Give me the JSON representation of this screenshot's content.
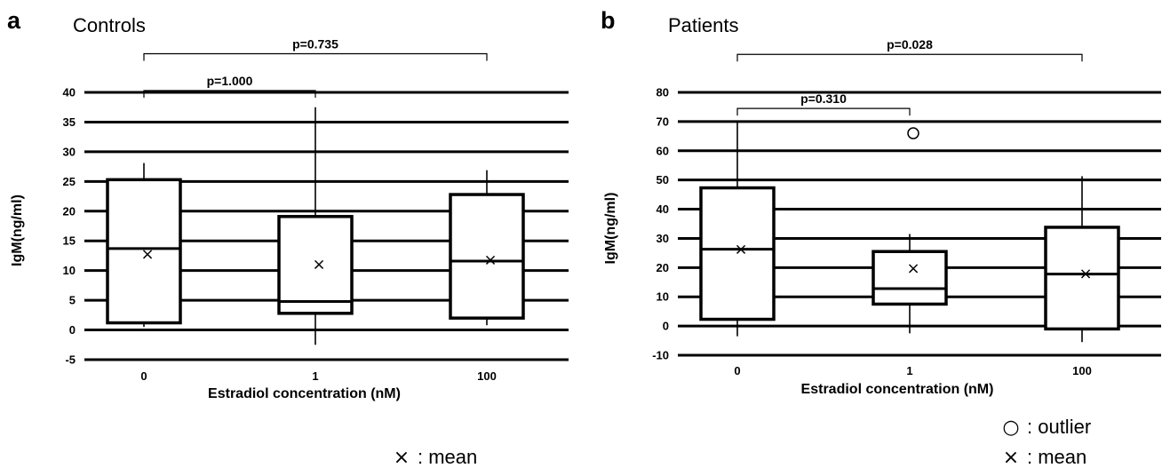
{
  "chart_data": [
    {
      "panel": "a",
      "type": "box",
      "title": "Controls",
      "xlabel": "Estradiol concentration (nM)",
      "ylabel": "IgM(ng/ml)",
      "ylim": [
        -5,
        40
      ],
      "yticks": [
        -5,
        0,
        5,
        10,
        15,
        20,
        25,
        30,
        35,
        40
      ],
      "grid": true,
      "categories": [
        "0",
        "1",
        "100"
      ],
      "boxes": [
        {
          "category": "0",
          "whisker_low": 0.5,
          "q1": 1.2,
          "median": 13.7,
          "q3": 25.3,
          "whisker_high": 28.1,
          "mean": 12.8,
          "outliers": []
        },
        {
          "category": "1",
          "whisker_low": -2.5,
          "q1": 2.8,
          "median": 4.8,
          "q3": 19.1,
          "whisker_high": 37.5,
          "mean": 11.1,
          "outliers": []
        },
        {
          "category": "100",
          "whisker_low": 0.8,
          "q1": 2.0,
          "median": 11.6,
          "q3": 22.8,
          "whisker_high": 26.9,
          "mean": 11.8,
          "outliers": []
        }
      ],
      "comparisons": [
        {
          "from": "0",
          "to": "100",
          "label": "p=0.735",
          "y": 46.5
        },
        {
          "from": "0",
          "to": "1",
          "label": "p=1.000",
          "y": 40.3
        }
      ],
      "legend": [
        {
          "symbol": "×",
          "label": ": mean"
        }
      ]
    },
    {
      "panel": "b",
      "type": "box",
      "title": "Patients",
      "xlabel": "Estradiol concentration (nM)",
      "ylabel": "IgM(ng/ml)",
      "ylim": [
        -10,
        80
      ],
      "yticks": [
        -10,
        0,
        10,
        20,
        30,
        40,
        50,
        60,
        70,
        80
      ],
      "grid": true,
      "categories": [
        "0",
        "1",
        "100"
      ],
      "boxes": [
        {
          "category": "0",
          "whisker_low": -3.5,
          "q1": 2.3,
          "median": 26.3,
          "q3": 47.3,
          "whisker_high": 69.8,
          "mean": 26.3,
          "outliers": []
        },
        {
          "category": "1",
          "whisker_low": -2.5,
          "q1": 7.5,
          "median": 12.8,
          "q3": 25.5,
          "whisker_high": 31.5,
          "mean": 19.8,
          "outliers": [
            66
          ]
        },
        {
          "category": "100",
          "whisker_low": -5.5,
          "q1": -1.0,
          "median": 17.8,
          "q3": 33.8,
          "whisker_high": 51.3,
          "mean": 18.0,
          "outliers": []
        }
      ],
      "comparisons": [
        {
          "from": "0",
          "to": "100",
          "label": "p=0.028",
          "y": 93
        },
        {
          "from": "0",
          "to": "1",
          "label": "p=0.310",
          "y": 74.5
        }
      ],
      "legend": [
        {
          "symbol": "○",
          "label": ": outlier"
        },
        {
          "symbol": "×",
          "label": ": mean"
        }
      ]
    }
  ]
}
